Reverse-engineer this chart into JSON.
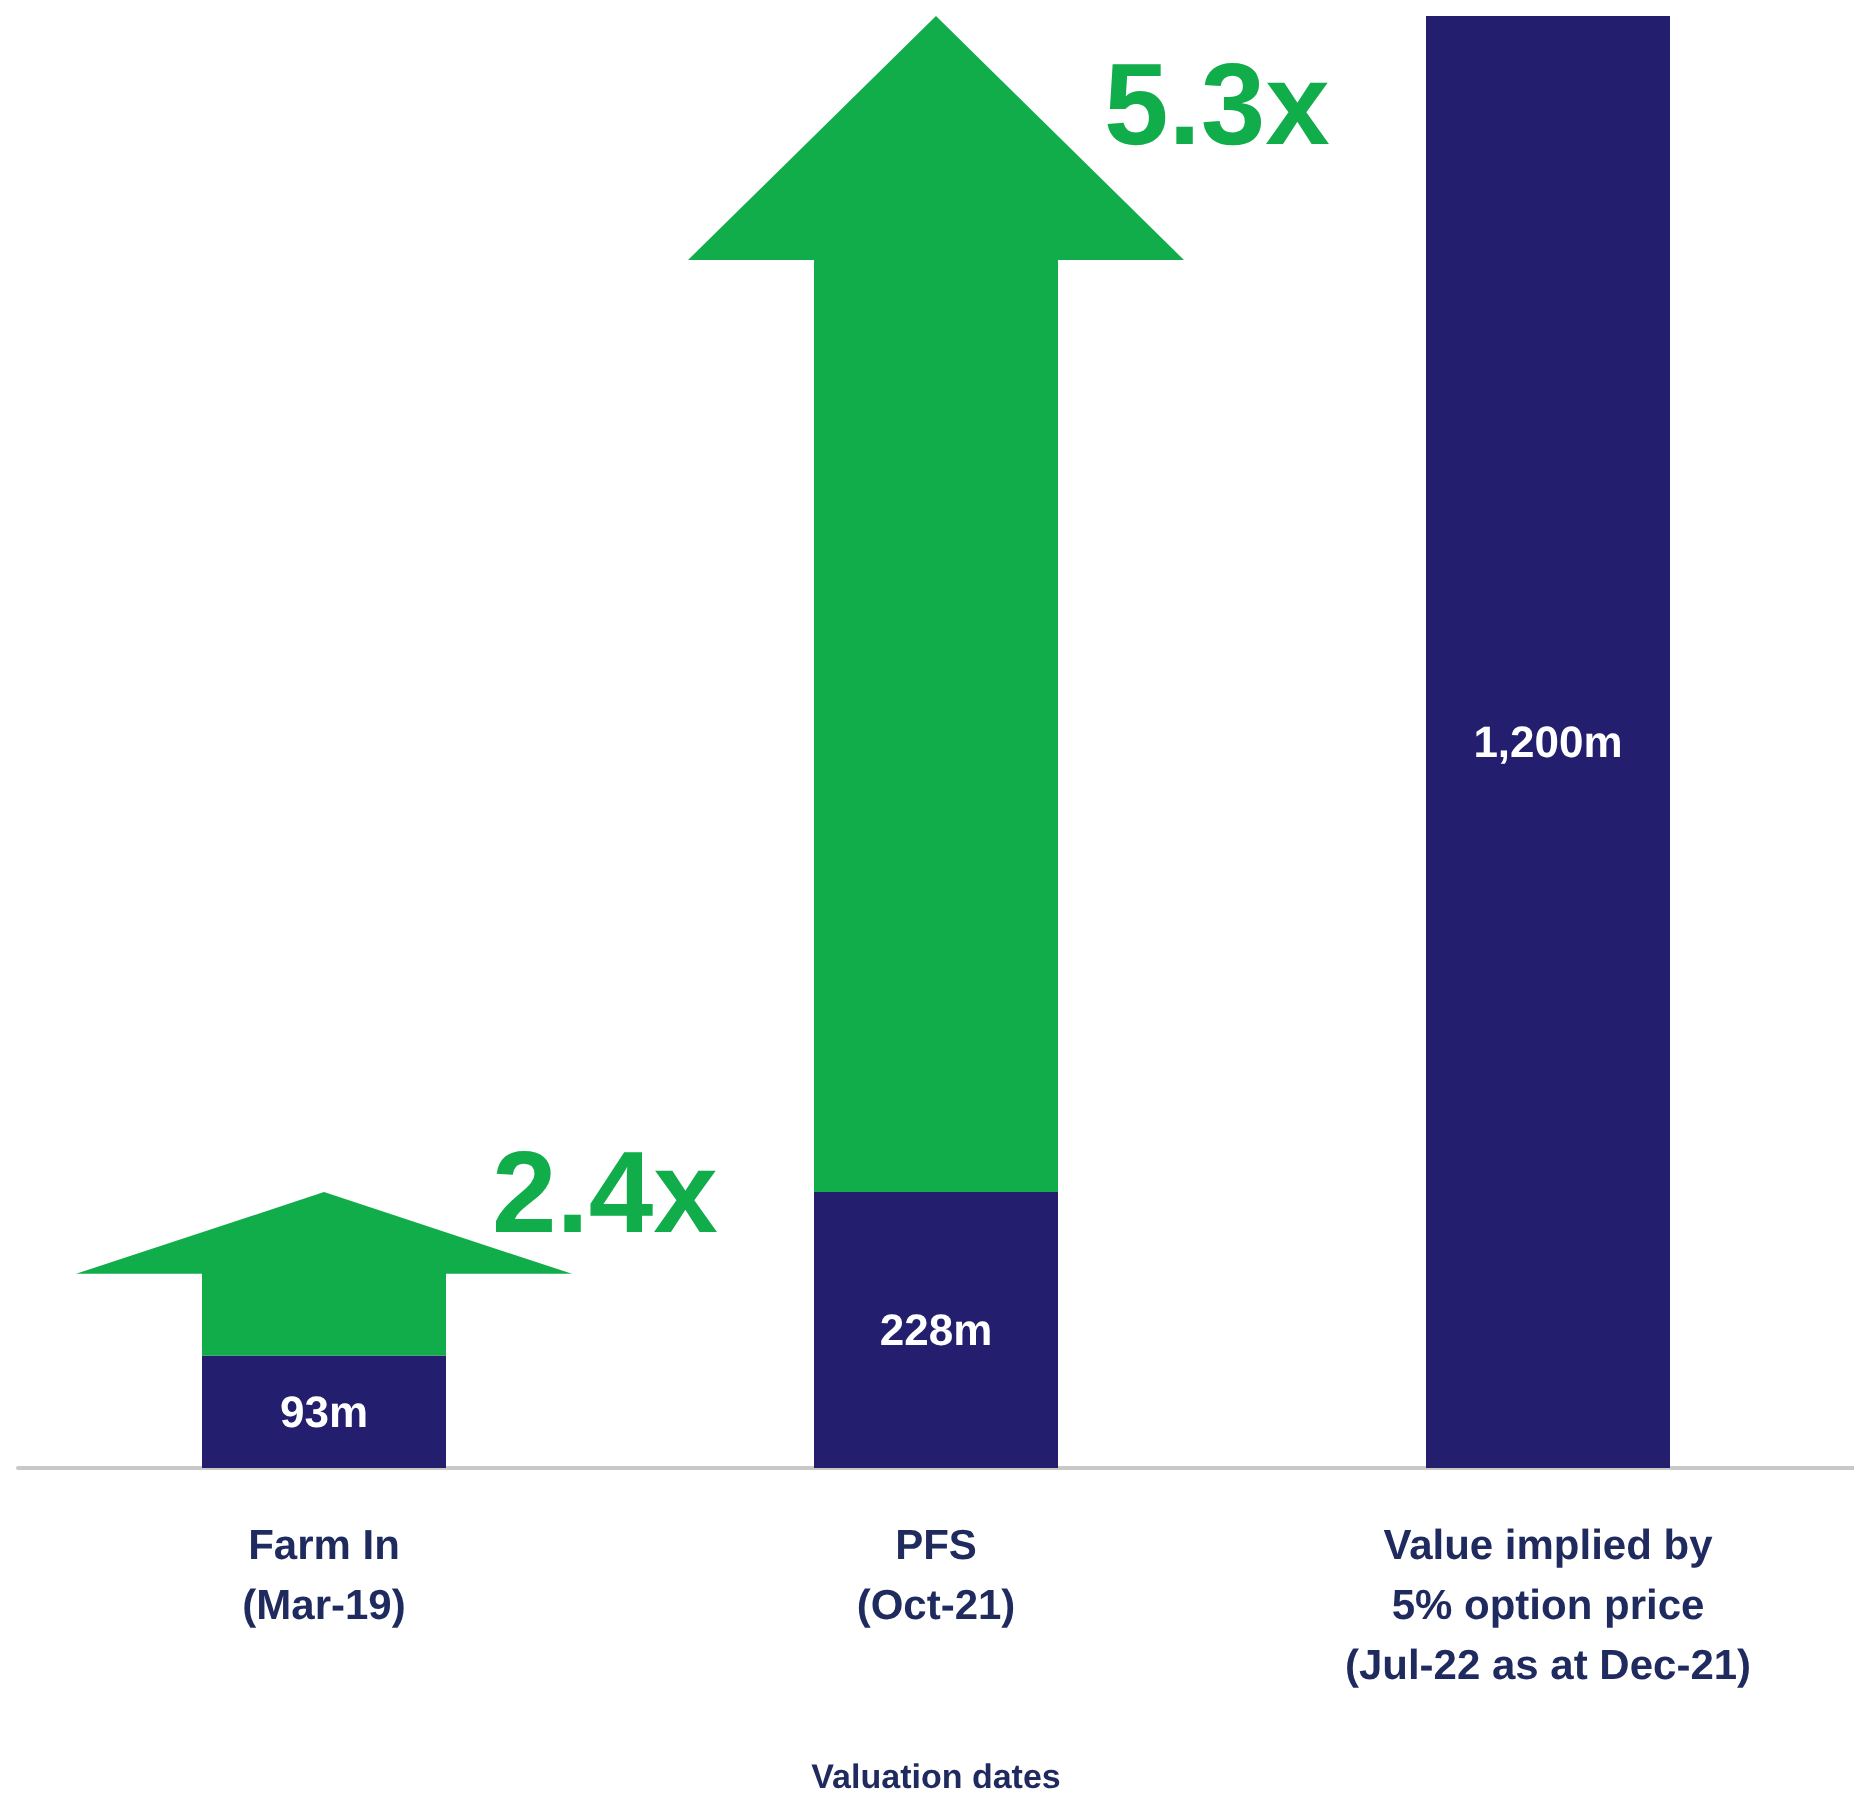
{
  "chart_data": {
    "type": "bar",
    "xlabel": "Valuation dates",
    "categories": [
      "Farm In\n(Mar-19)",
      "PFS\n(Oct-21)",
      "Value implied by\n5% option price\n(Jul-22 as at Dec-21)"
    ],
    "values": [
      93,
      228,
      1200
    ],
    "color": "#231f6e",
    "value_labels": [
      "93m",
      "228m",
      "1,200m"
    ],
    "annotations": [
      "2.4x",
      "5.3x"
    ]
  }
}
